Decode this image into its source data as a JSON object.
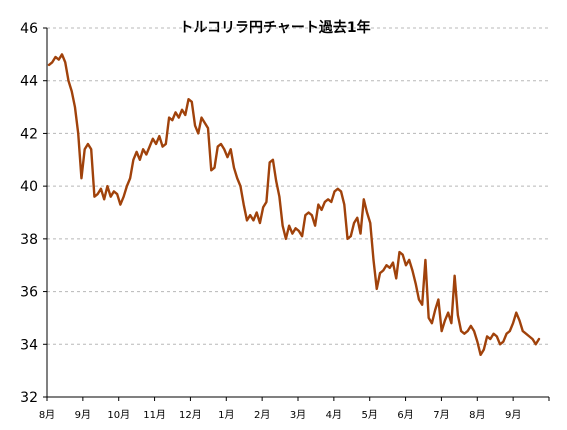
{
  "chart_data": {
    "type": "line",
    "title": "トルコリラ円チャート過去1年",
    "xlabel": "",
    "ylabel": "",
    "ylim": [
      32,
      46
    ],
    "yticks": [
      32,
      34,
      36,
      38,
      40,
      42,
      44,
      46
    ],
    "grid": true,
    "x_tick_labels": [
      "8月",
      "9月",
      "10月",
      "11月",
      "12月",
      "1月",
      "2月",
      "3月",
      "4月",
      "5月",
      "6月",
      "7月",
      "8月",
      "9月"
    ],
    "line_color": "#a0420b",
    "series": [
      {
        "values": [
          44.6,
          44.7,
          44.9,
          44.8,
          45.0,
          44.7,
          44.0,
          43.6,
          43.0,
          42.0,
          40.3,
          41.4,
          41.6,
          41.4,
          39.6,
          39.7,
          39.9,
          39.5,
          40.0,
          39.6,
          39.8,
          39.7,
          39.3,
          39.6,
          40.0,
          40.3,
          41.0,
          41.3,
          41.0,
          41.4,
          41.2,
          41.5,
          41.8,
          41.6,
          41.9,
          41.5,
          41.6,
          42.6,
          42.5,
          42.8,
          42.6,
          42.9,
          42.7,
          43.3,
          43.2,
          42.3,
          42.0,
          42.6,
          42.4,
          42.2,
          40.6,
          40.7,
          41.5,
          41.6,
          41.4,
          41.1,
          41.4,
          40.7,
          40.3,
          40.0,
          39.3,
          38.7,
          38.9,
          38.7,
          39.0,
          38.6,
          39.2,
          39.4,
          40.9,
          41.0,
          40.2,
          39.6,
          38.5,
          38.0,
          38.5,
          38.2,
          38.4,
          38.3,
          38.1,
          38.9,
          39.0,
          38.9,
          38.5,
          39.3,
          39.1,
          39.4,
          39.5,
          39.4,
          39.8,
          39.9,
          39.8,
          39.3,
          38.0,
          38.1,
          38.6,
          38.8,
          38.2,
          39.5,
          39.0,
          38.6,
          37.2,
          36.1,
          36.7,
          36.8,
          37.0,
          36.9,
          37.1,
          36.5,
          37.5,
          37.4,
          37.0,
          37.2,
          36.8,
          36.3,
          35.7,
          35.5,
          37.2,
          35.0,
          34.8,
          35.3,
          35.7,
          34.5,
          34.9,
          35.2,
          34.8,
          36.6,
          35.1,
          34.5,
          34.4,
          34.5,
          34.7,
          34.5,
          34.1,
          33.6,
          33.8,
          34.3,
          34.2,
          34.4,
          34.3,
          34.0,
          34.1,
          34.4,
          34.5,
          34.8,
          35.2,
          34.9,
          34.5,
          34.4,
          34.3,
          34.2,
          34.0,
          34.2
        ]
      }
    ]
  }
}
